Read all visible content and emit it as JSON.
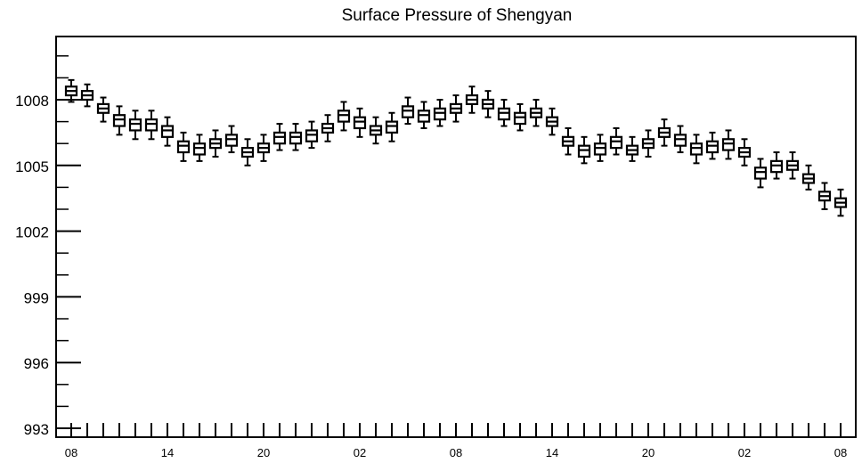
{
  "chart_data": {
    "type": "box",
    "title": "Surface Pressure of Shengyan",
    "xlabel": "",
    "ylabel": "",
    "ylim": [
      993,
      1011
    ],
    "y_ticks": [
      993,
      996,
      999,
      1002,
      1005,
      1008
    ],
    "x_tick_labels": [
      "08",
      "14",
      "20",
      "02",
      "08",
      "14",
      "20",
      "02",
      "08"
    ],
    "x_tick_label_step": 6,
    "x_count": 49,
    "grid": false,
    "median": [
      1008.4,
      1008.2,
      1007.6,
      1007.1,
      1006.9,
      1006.9,
      1006.6,
      1005.9,
      1005.8,
      1006.0,
      1006.2,
      1005.6,
      1005.8,
      1006.3,
      1006.3,
      1006.4,
      1006.7,
      1007.3,
      1007.0,
      1006.6,
      1006.8,
      1007.5,
      1007.3,
      1007.4,
      1007.6,
      1008.0,
      1007.8,
      1007.4,
      1007.2,
      1007.4,
      1007.0,
      1006.1,
      1005.7,
      1005.8,
      1006.1,
      1005.7,
      1006.0,
      1006.5,
      1006.2,
      1005.8,
      1005.9,
      1006.0,
      1005.6,
      1004.7,
      1005.0,
      1005.0,
      1004.4,
      1003.6,
      1003.3
    ],
    "q1": [
      1008.2,
      1008.0,
      1007.4,
      1006.8,
      1006.6,
      1006.6,
      1006.3,
      1005.6,
      1005.5,
      1005.8,
      1005.9,
      1005.4,
      1005.6,
      1006.0,
      1006.0,
      1006.1,
      1006.5,
      1007.0,
      1006.7,
      1006.4,
      1006.5,
      1007.2,
      1007.0,
      1007.1,
      1007.4,
      1007.8,
      1007.6,
      1007.1,
      1006.9,
      1007.2,
      1006.8,
      1005.9,
      1005.4,
      1005.5,
      1005.8,
      1005.5,
      1005.8,
      1006.3,
      1005.9,
      1005.5,
      1005.6,
      1005.7,
      1005.4,
      1004.4,
      1004.7,
      1004.8,
      1004.2,
      1003.4,
      1003.1
    ],
    "q3": [
      1008.6,
      1008.4,
      1007.8,
      1007.3,
      1007.1,
      1007.1,
      1006.8,
      1006.1,
      1006.0,
      1006.2,
      1006.4,
      1005.8,
      1006.0,
      1006.5,
      1006.5,
      1006.6,
      1006.9,
      1007.5,
      1007.2,
      1006.8,
      1007.0,
      1007.7,
      1007.5,
      1007.6,
      1007.8,
      1008.2,
      1008.0,
      1007.6,
      1007.4,
      1007.6,
      1007.2,
      1006.3,
      1005.9,
      1006.0,
      1006.3,
      1005.9,
      1006.2,
      1006.7,
      1006.4,
      1006.0,
      1006.1,
      1006.2,
      1005.8,
      1004.9,
      1005.2,
      1005.2,
      1004.6,
      1003.8,
      1003.5
    ],
    "whisker_low": [
      1007.9,
      1007.7,
      1007.0,
      1006.4,
      1006.2,
      1006.2,
      1005.9,
      1005.2,
      1005.2,
      1005.4,
      1005.6,
      1005.0,
      1005.2,
      1005.7,
      1005.7,
      1005.8,
      1006.1,
      1006.6,
      1006.3,
      1006.0,
      1006.1,
      1006.9,
      1006.7,
      1006.8,
      1007.0,
      1007.4,
      1007.2,
      1006.8,
      1006.6,
      1006.8,
      1006.4,
      1005.5,
      1005.1,
      1005.2,
      1005.5,
      1005.2,
      1005.4,
      1005.9,
      1005.6,
      1005.1,
      1005.3,
      1005.3,
      1005.0,
      1004.0,
      1004.4,
      1004.4,
      1003.9,
      1003.0,
      1002.7
    ],
    "whisker_high": [
      1008.9,
      1008.7,
      1008.1,
      1007.7,
      1007.5,
      1007.5,
      1007.2,
      1006.5,
      1006.4,
      1006.6,
      1006.8,
      1006.2,
      1006.4,
      1006.9,
      1006.9,
      1007.0,
      1007.3,
      1007.9,
      1007.6,
      1007.2,
      1007.4,
      1008.1,
      1007.9,
      1008.0,
      1008.2,
      1008.6,
      1008.4,
      1008.0,
      1007.8,
      1008.0,
      1007.6,
      1006.7,
      1006.3,
      1006.4,
      1006.7,
      1006.3,
      1006.6,
      1007.1,
      1006.8,
      1006.4,
      1006.5,
      1006.6,
      1006.2,
      1005.3,
      1005.6,
      1005.6,
      1005.0,
      1004.2,
      1003.9
    ]
  }
}
